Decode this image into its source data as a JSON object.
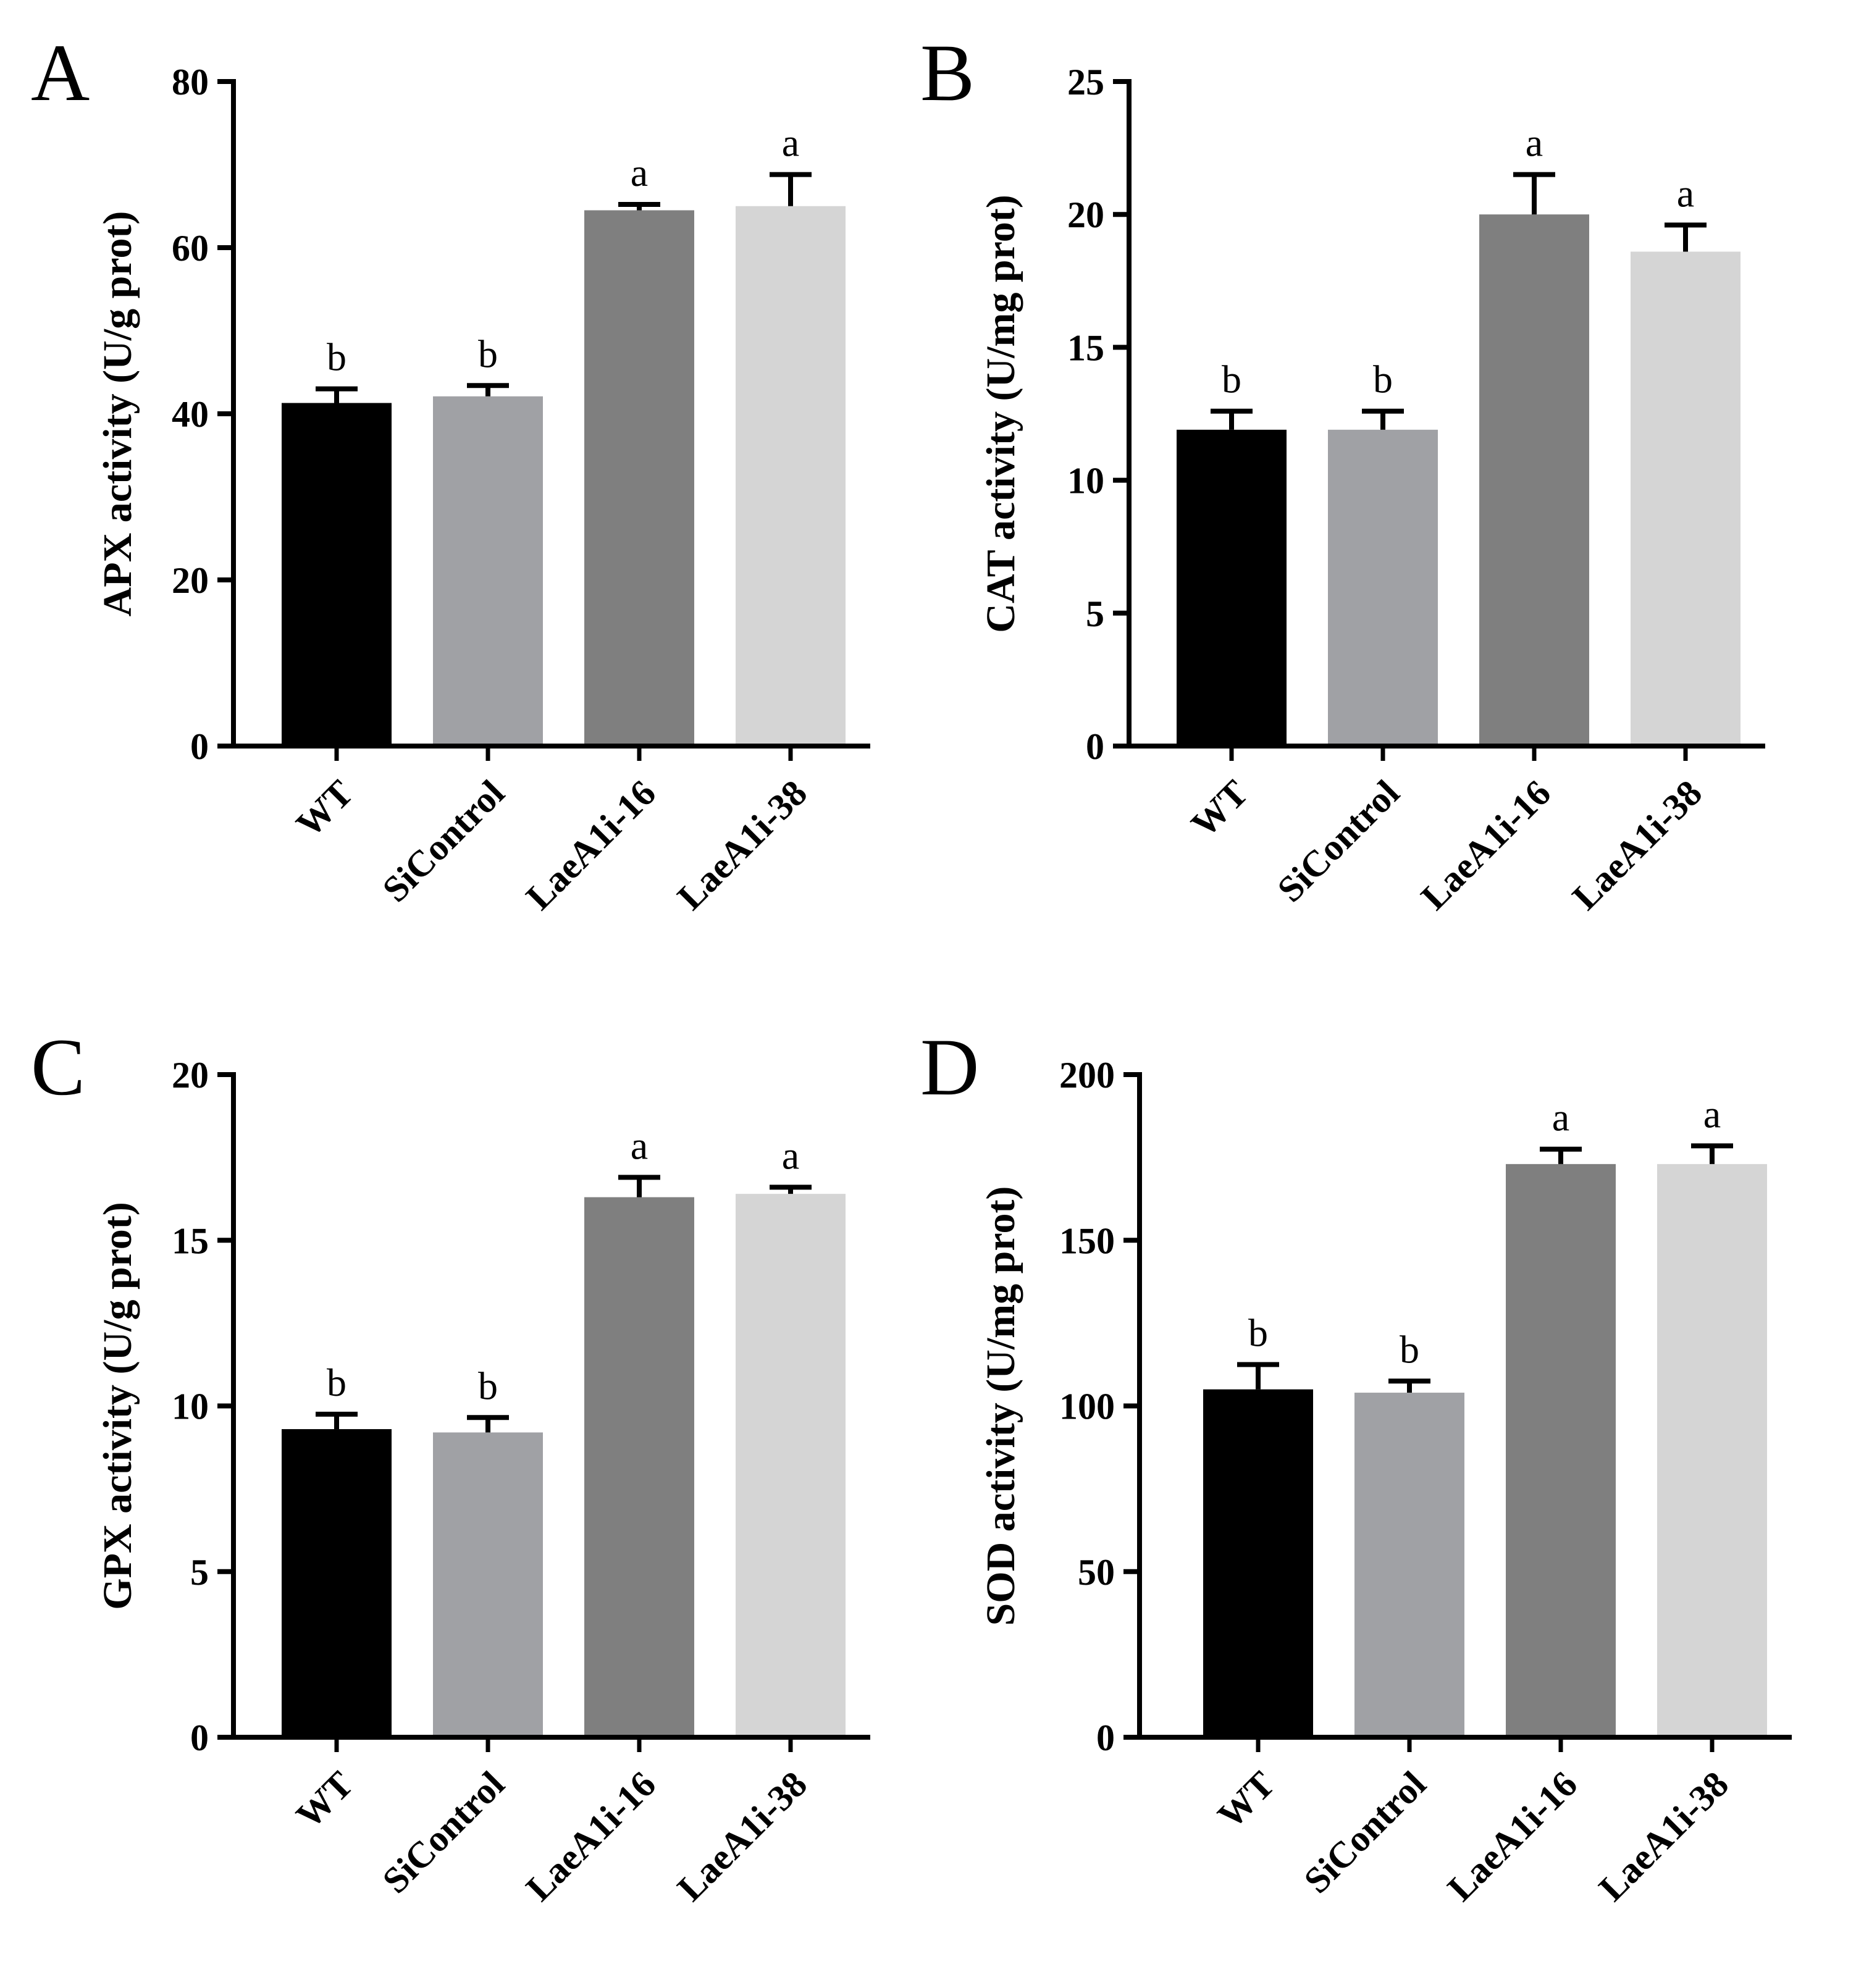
{
  "figure": {
    "colors": {
      "WT": "#000000",
      "SiControl": "#a0a1a5",
      "LaeA1i-16": "#7f7f7f",
      "LaeA1i-38": "#d5d5d5",
      "axis": "#000000"
    }
  },
  "chart_data": [
    {
      "panel": "A",
      "type": "bar",
      "title": "",
      "xlabel": "",
      "ylabel": "APX activity (U/g prot)",
      "categories": [
        "WT",
        "SiControl",
        "LaeA1i-16",
        "LaeA1i-38"
      ],
      "values": [
        41.3,
        42.1,
        64.5,
        65.0
      ],
      "errors": [
        1.7,
        1.3,
        0.7,
        3.8
      ],
      "significance": [
        "b",
        "b",
        "a",
        "a"
      ],
      "ylim": [
        0,
        80
      ],
      "yticks": [
        0,
        20,
        40,
        60,
        80
      ],
      "ytick_labels": [
        "0",
        "20",
        "40",
        "60",
        "80"
      ]
    },
    {
      "panel": "B",
      "type": "bar",
      "title": "",
      "xlabel": "",
      "ylabel": "CAT activity (U/mg prot)",
      "categories": [
        "WT",
        "SiControl",
        "LaeA1i-16",
        "LaeA1i-38"
      ],
      "values": [
        11.9,
        11.9,
        20.0,
        18.6
      ],
      "errors": [
        0.7,
        0.7,
        1.5,
        1.0
      ],
      "significance": [
        "b",
        "b",
        "a",
        "a"
      ],
      "ylim": [
        0,
        25
      ],
      "yticks": [
        0,
        5,
        10,
        15,
        20,
        25
      ],
      "ytick_labels": [
        "0",
        "5",
        "10",
        "15",
        "20",
        "25"
      ]
    },
    {
      "panel": "C",
      "type": "bar",
      "title": "",
      "xlabel": "",
      "ylabel": "GPX activity (U/g prot)",
      "categories": [
        "WT",
        "SiControl",
        "LaeA1i-16",
        "LaeA1i-38"
      ],
      "values": [
        9.3,
        9.2,
        16.3,
        16.4
      ],
      "errors": [
        0.45,
        0.45,
        0.6,
        0.2
      ],
      "significance": [
        "b",
        "b",
        "a",
        "a"
      ],
      "ylim": [
        0,
        20
      ],
      "yticks": [
        0,
        5,
        10,
        15,
        20
      ],
      "ytick_labels": [
        "0",
        "5",
        "10",
        "15",
        "20"
      ]
    },
    {
      "panel": "D",
      "type": "bar",
      "title": "",
      "xlabel": "",
      "ylabel": "SOD activity (U/mg prot)",
      "categories": [
        "WT",
        "SiControl",
        "LaeA1i-16",
        "LaeA1i-38"
      ],
      "values": [
        105.0,
        104.0,
        173.0,
        173.0
      ],
      "errors": [
        7.5,
        3.5,
        4.5,
        5.5
      ],
      "significance": [
        "b",
        "b",
        "a",
        "a"
      ],
      "ylim": [
        0,
        200
      ],
      "yticks": [
        0,
        50,
        100,
        150,
        200
      ],
      "ytick_labels": [
        "0",
        "50",
        "100",
        "150",
        "200"
      ]
    }
  ]
}
